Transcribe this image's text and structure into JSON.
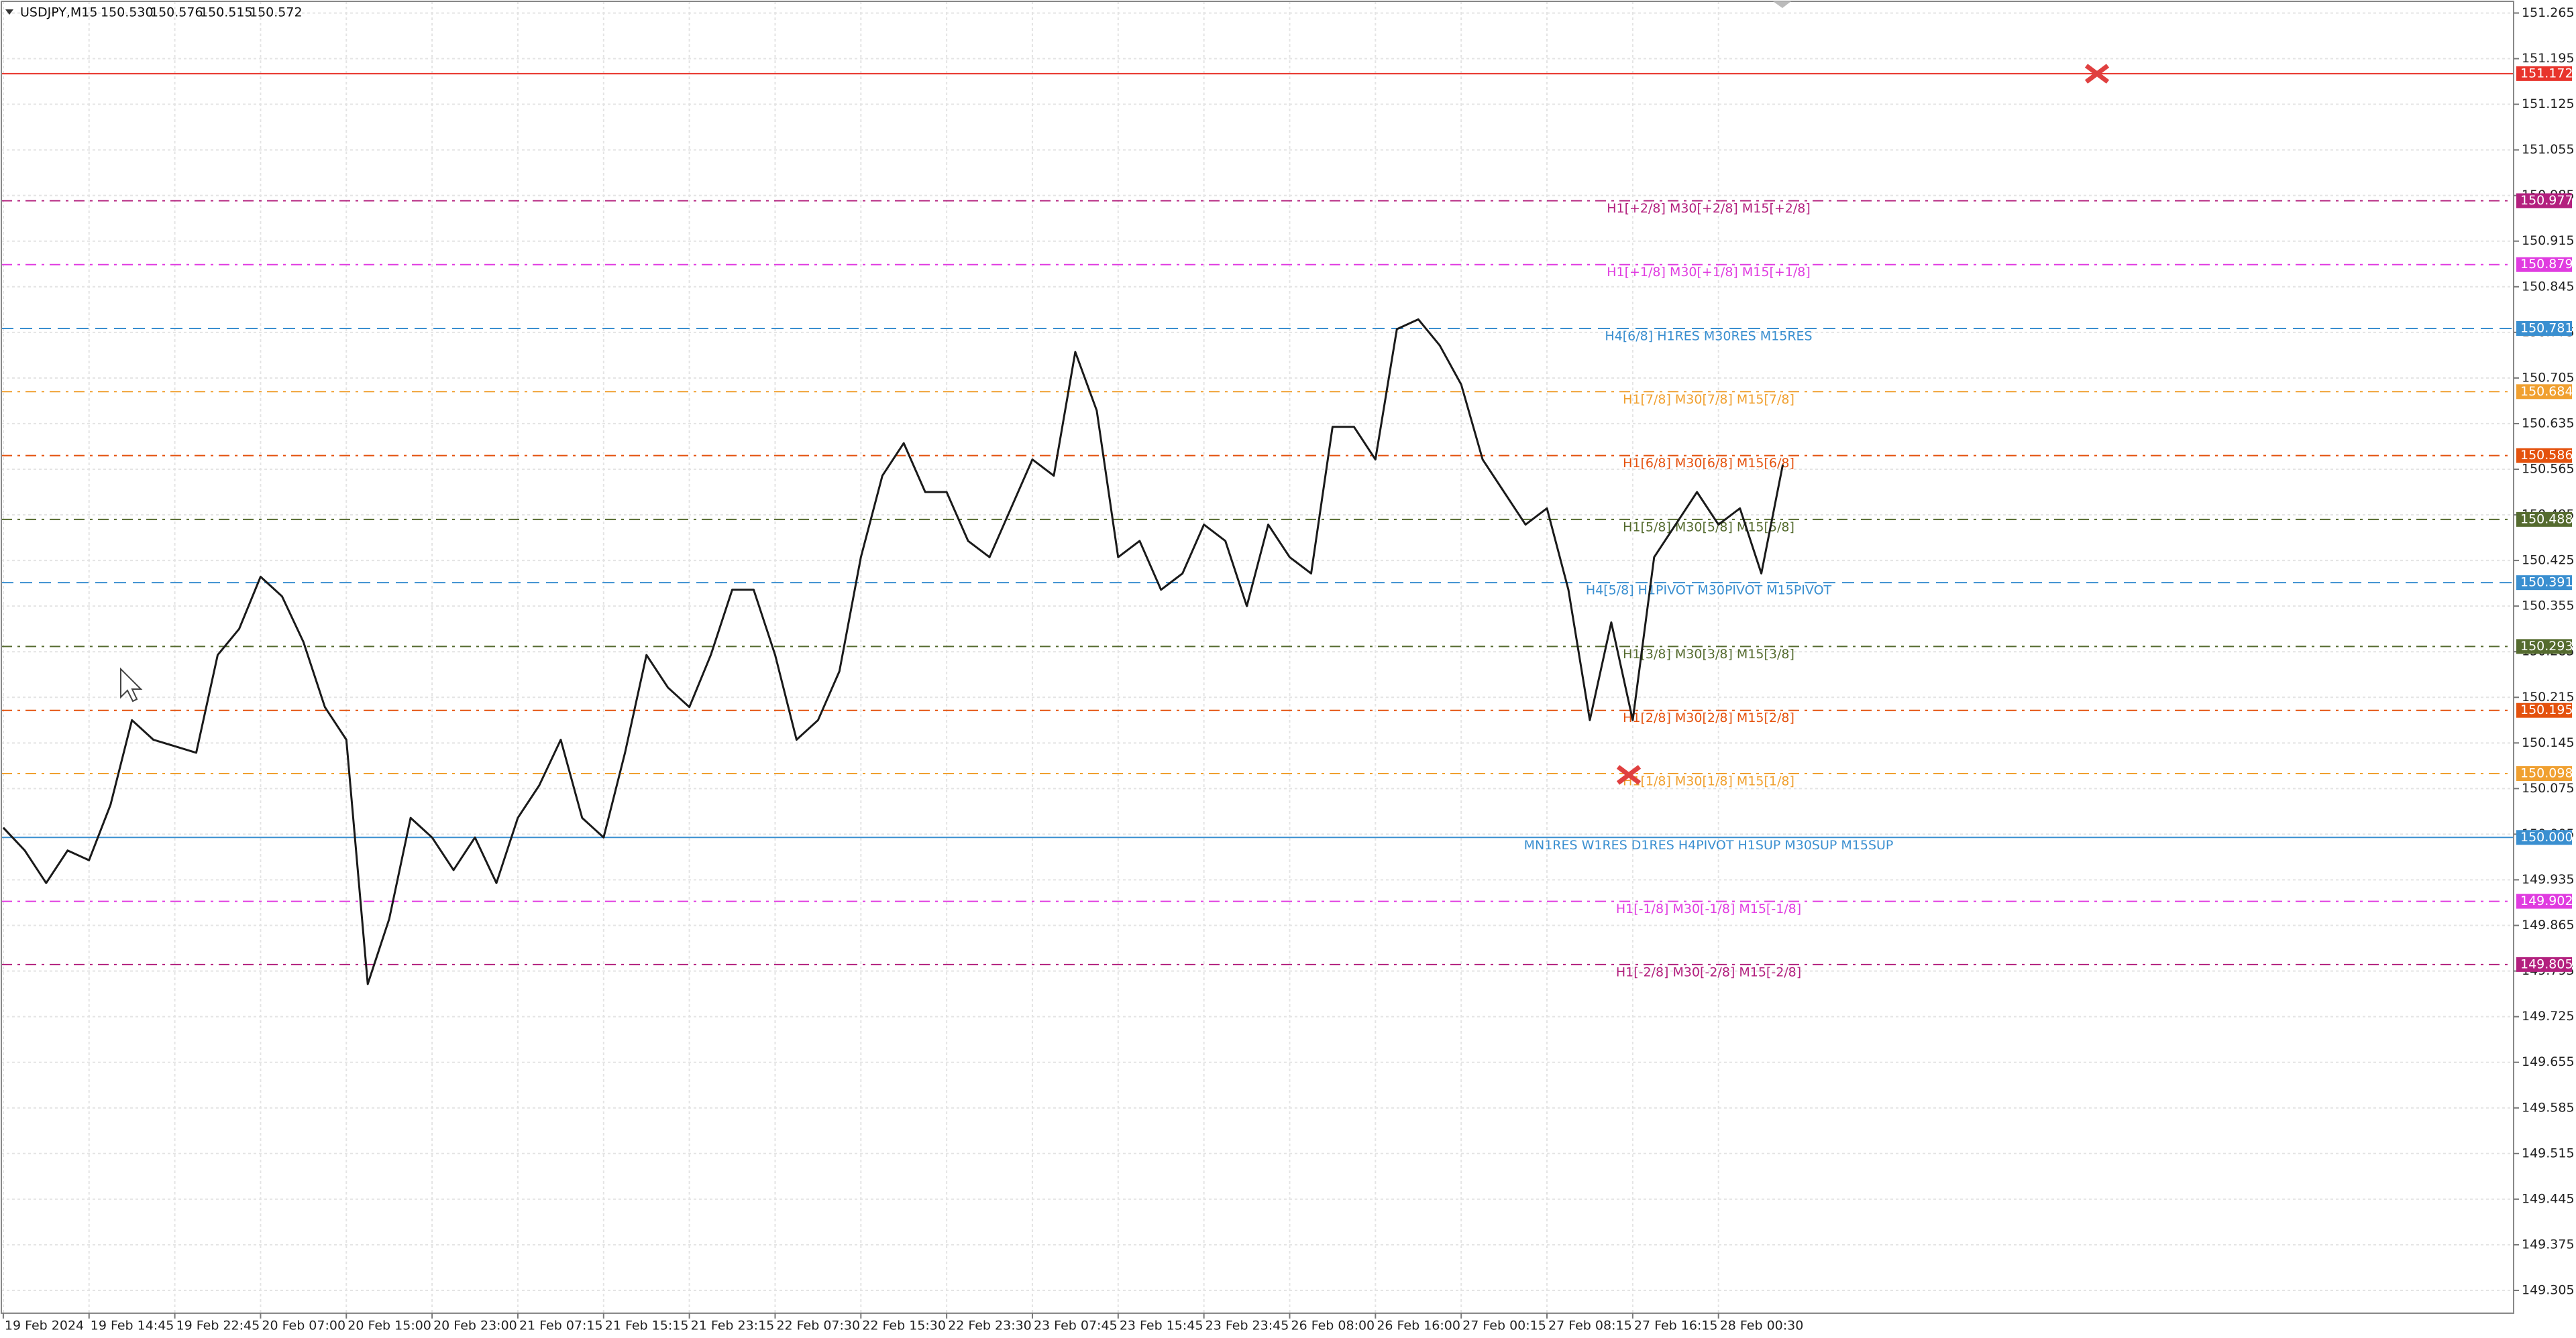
{
  "chart_data": {
    "type": "line",
    "quote": [
      "150.530",
      "150.576",
      "150.515",
      "150.572"
    ],
    "categories": [
      "19 Feb 2024",
      null,
      null,
      null,
      "19 Feb 14:45",
      null,
      null,
      null,
      "19 Feb 22:45",
      null,
      null,
      null,
      "20 Feb 07:00",
      null,
      null,
      null,
      "20 Feb 15:00",
      null,
      null,
      null,
      "20 Feb 23:00",
      null,
      null,
      null,
      "21 Feb 07:15",
      null,
      null,
      null,
      "21 Feb 15:15",
      null,
      null,
      null,
      "21 Feb 23:15",
      null,
      null,
      null,
      "22 Feb 07:30",
      null,
      null,
      null,
      "22 Feb 15:30",
      null,
      null,
      null,
      "22 Feb 23:30",
      null,
      null,
      null,
      "23 Feb 07:45",
      null,
      null,
      null,
      "23 Feb 15:45",
      null,
      null,
      null,
      "23 Feb 23:45",
      null,
      null,
      null,
      "26 Feb 08:00",
      null,
      null,
      null,
      "26 Feb 16:00",
      null,
      null,
      null,
      "27 Feb 00:15",
      null,
      null,
      null,
      "27 Feb 08:15",
      null,
      null,
      null,
      "27 Feb 16:15",
      null,
      null,
      null,
      "28 Feb 00:30",
      null,
      null,
      null
    ],
    "series": [
      {
        "name": "USDJPY,M15",
        "color": "#1a1a1a",
        "values": [
          150.015,
          149.98,
          149.93,
          149.98,
          149.965,
          150.05,
          150.18,
          150.15,
          150.14,
          150.13,
          150.28,
          150.32,
          150.4,
          150.37,
          150.3,
          150.2,
          150.15,
          149.775,
          149.875,
          150.03,
          150.0,
          149.95,
          150.0,
          149.93,
          150.03,
          150.08,
          150.15,
          150.03,
          150.0,
          150.13,
          150.28,
          150.23,
          150.2,
          150.28,
          150.38,
          150.38,
          150.28,
          150.15,
          150.18,
          150.255,
          150.43,
          150.555,
          150.605,
          150.53,
          150.53,
          150.455,
          150.43,
          150.505,
          150.58,
          150.555,
          150.745,
          150.655,
          150.43,
          150.455,
          150.38,
          150.405,
          150.48,
          150.455,
          150.355,
          150.48,
          150.43,
          150.405,
          150.63,
          150.63,
          150.58,
          150.78,
          150.795,
          150.755,
          150.695,
          150.58,
          150.53,
          150.48,
          150.505,
          150.38,
          150.18,
          150.33,
          150.18,
          150.43,
          150.48,
          150.53,
          150.48,
          150.505,
          150.405,
          150.572
        ]
      }
    ],
    "ylim": [
      149.27,
      151.285
    ],
    "yticks": [
      151.265,
      151.195,
      151.125,
      151.055,
      150.985,
      150.915,
      150.845,
      150.775,
      150.705,
      150.635,
      150.565,
      150.495,
      150.425,
      150.355,
      150.285,
      150.215,
      150.145,
      150.075,
      150.005,
      149.935,
      149.865,
      149.795,
      149.725,
      149.655,
      149.585,
      149.515,
      149.445,
      149.375,
      149.305
    ],
    "grid": true,
    "levels": [
      {
        "price": 151.172,
        "color": "#e8342c",
        "dash": "solid"
      },
      {
        "price": 150.977,
        "color": "#b3207e",
        "dash": "dashdot",
        "text": "H1[+2/8] M30[+2/8] M15[+2/8]"
      },
      {
        "price": 150.879,
        "color": "#e03ce0",
        "dash": "dashdot",
        "text": "H1[+1/8] M30[+1/8] M15[+1/8]"
      },
      {
        "price": 150.781,
        "color": "#3a8fd0",
        "dash": "dash",
        "text": "H4[6/8] H1RES M30RES M15RES"
      },
      {
        "price": 150.684,
        "color": "#f0a030",
        "dash": "dashdot",
        "text": "H1[7/8] M30[7/8] M15[7/8]"
      },
      {
        "price": 150.586,
        "color": "#e4520e",
        "dash": "dashdot",
        "text": "H1[6/8] M30[6/8] M15[6/8]"
      },
      {
        "price": 150.488,
        "color": "#556b2f",
        "dash": "dashdot",
        "text": "H1[5/8] M30[5/8] M15[5/8]"
      },
      {
        "price": 150.391,
        "color": "#3a8fd0",
        "dash": "dash",
        "text": "H4[5/8] H1PIVOT M30PIVOT M15PIVOT"
      },
      {
        "price": 150.293,
        "color": "#556b2f",
        "dash": "dashdot",
        "text": "H1[3/8] M30[3/8] M15[3/8]"
      },
      {
        "price": 150.195,
        "color": "#e4520e",
        "dash": "dashdot",
        "text": "H1[2/8] M30[2/8] M15[2/8]"
      },
      {
        "price": 150.098,
        "color": "#f0a030",
        "dash": "dashdot",
        "text": "H1[1/8] M30[1/8] M15[1/8]"
      },
      {
        "price": {
          "value": 150.0,
          "label": "150.000"
        },
        "color": "#3a8fd0",
        "dash": "solid",
        "text": "MN1RES W1RES D1RES H4PIVOT H1SUP M30SUP M15SUP"
      },
      {
        "price": 149.902,
        "color": "#e03ce0",
        "dash": "dashdot",
        "text": "H1[-1/8] M30[-1/8] M15[-1/8]"
      },
      {
        "price": 149.805,
        "color": "#b3207e",
        "dash": "dashdot",
        "text": "H1[-2/8] M30[-2/8] M15[-2/8]"
      }
    ]
  }
}
